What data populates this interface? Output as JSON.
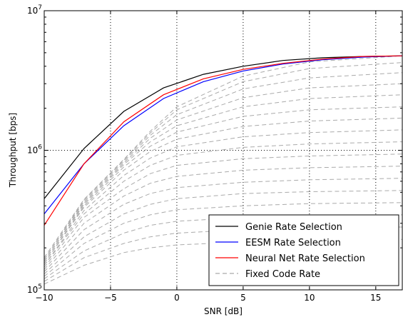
{
  "chart_data": {
    "type": "line",
    "xlabel": "SNR [dB]",
    "ylabel": "Throughput [bps]",
    "xlim": [
      -10,
      17
    ],
    "ylim": [
      100000,
      10000000
    ],
    "yscale": "log",
    "x_ticks": [
      -10,
      -5,
      0,
      5,
      10,
      15
    ],
    "x_tick_labels": [
      "−10",
      "−5",
      "0",
      "5",
      "10",
      "15"
    ],
    "y_ticks": [
      100000,
      1000000,
      10000000
    ],
    "y_tick_labels": [
      {
        "base": "10",
        "exp": "5"
      },
      {
        "base": "10",
        "exp": "6"
      },
      {
        "base": "10",
        "exp": "7"
      }
    ],
    "grid": "dotted",
    "legend_position": "lower-right",
    "series": [
      {
        "name": "Genie Rate Selection",
        "color": "#000000",
        "style": "solid",
        "x": [
          -10,
          -7,
          -4,
          -1,
          2,
          5,
          8,
          11,
          14,
          17
        ],
        "y": [
          450000,
          1030000,
          1900000,
          2800000,
          3500000,
          4000000,
          4400000,
          4600000,
          4700000,
          4750000
        ]
      },
      {
        "name": "EESM Rate Selection",
        "color": "#0000ff",
        "style": "solid",
        "x": [
          -10,
          -7,
          -4,
          -1,
          2,
          5,
          8,
          11,
          14,
          17
        ],
        "y": [
          350000,
          800000,
          1500000,
          2350000,
          3100000,
          3700000,
          4150000,
          4450000,
          4650000,
          4750000
        ]
      },
      {
        "name": "Neural Net Rate Selection",
        "color": "#ff0000",
        "style": "solid",
        "x": [
          -10,
          -7,
          -4,
          -1,
          2,
          5,
          8,
          11,
          14,
          17
        ],
        "y": [
          290000,
          800000,
          1600000,
          2500000,
          3250000,
          3800000,
          4200000,
          4500000,
          4700000,
          4750000
        ]
      }
    ],
    "fixed_code_rate": {
      "name": "Fixed Code Rate",
      "color": "#aaaaaa",
      "style": "dashed",
      "curves": [
        {
          "x": [
            -10,
            -7,
            -4,
            -2,
            0,
            5,
            10,
            17
          ],
          "y": [
            110000,
            150000,
            185000,
            200000,
            210000,
            220000,
            225000,
            230000
          ]
        },
        {
          "x": [
            -10,
            -7,
            -4,
            -2,
            0,
            5,
            10,
            17
          ],
          "y": [
            115000,
            170000,
            215000,
            240000,
            255000,
            270000,
            278000,
            282000
          ]
        },
        {
          "x": [
            -10,
            -7,
            -4,
            -2,
            0,
            5,
            10,
            17
          ],
          "y": [
            120000,
            190000,
            255000,
            290000,
            310000,
            330000,
            340000,
            345000
          ]
        },
        {
          "x": [
            -10,
            -7,
            -4,
            -2,
            0,
            5,
            10,
            17
          ],
          "y": [
            125000,
            215000,
            300000,
            345000,
            375000,
            400000,
            415000,
            422000
          ]
        },
        {
          "x": [
            -10,
            -7,
            -4,
            -2,
            0,
            5,
            10,
            17
          ],
          "y": [
            130000,
            240000,
            350000,
            410000,
            450000,
            490000,
            505000,
            515000
          ]
        },
        {
          "x": [
            -10,
            -7,
            -4,
            -2,
            0,
            5,
            10,
            17
          ],
          "y": [
            135000,
            270000,
            410000,
            490000,
            540000,
            590000,
            615000,
            630000
          ]
        },
        {
          "x": [
            -10,
            -7,
            -4,
            -2,
            0,
            5,
            10,
            17
          ],
          "y": [
            140000,
            300000,
            470000,
            580000,
            650000,
            720000,
            750000,
            770000
          ]
        },
        {
          "x": [
            -10,
            -7,
            -4,
            -2,
            0,
            5,
            10,
            17
          ],
          "y": [
            145000,
            330000,
            530000,
            680000,
            780000,
            870000,
            910000,
            940000
          ]
        },
        {
          "x": [
            -10,
            -7,
            -4,
            -2,
            0,
            5,
            10,
            17
          ],
          "y": [
            150000,
            350000,
            600000,
            780000,
            920000,
            1050000,
            1110000,
            1150000
          ]
        },
        {
          "x": [
            -10,
            -7,
            -4,
            -2,
            0,
            5,
            10,
            17
          ],
          "y": [
            150000,
            370000,
            660000,
            880000,
            1060000,
            1250000,
            1340000,
            1400000
          ]
        },
        {
          "x": [
            -10,
            -7,
            -4,
            -2,
            0,
            5,
            10,
            17
          ],
          "y": [
            155000,
            390000,
            720000,
            980000,
            1200000,
            1480000,
            1620000,
            1700000
          ]
        },
        {
          "x": [
            -10,
            -7,
            -4,
            -2,
            0,
            5,
            10,
            17
          ],
          "y": [
            155000,
            400000,
            760000,
            1070000,
            1350000,
            1750000,
            1950000,
            2050000
          ]
        },
        {
          "x": [
            -10,
            -7,
            -4,
            -2,
            0,
            5,
            10,
            17
          ],
          "y": [
            160000,
            410000,
            790000,
            1150000,
            1500000,
            2050000,
            2350000,
            2500000
          ]
        },
        {
          "x": [
            -10,
            -7,
            -4,
            -2,
            0,
            5,
            10,
            17
          ],
          "y": [
            160000,
            420000,
            810000,
            1220000,
            1650000,
            2380000,
            2800000,
            3000000
          ]
        },
        {
          "x": [
            -10,
            -7,
            -4,
            -2,
            0,
            5,
            10,
            17
          ],
          "y": [
            165000,
            430000,
            830000,
            1280000,
            1800000,
            2750000,
            3300000,
            3600000
          ]
        },
        {
          "x": [
            -10,
            -7,
            -4,
            -2,
            0,
            5,
            10,
            17
          ],
          "y": [
            165000,
            440000,
            850000,
            1330000,
            1950000,
            3100000,
            3850000,
            4250000
          ]
        },
        {
          "x": [
            -10,
            -7,
            -4,
            -2,
            0,
            5,
            10,
            17
          ],
          "y": [
            170000,
            445000,
            860000,
            1370000,
            2050000,
            3400000,
            4300000,
            4750000
          ]
        }
      ]
    }
  }
}
